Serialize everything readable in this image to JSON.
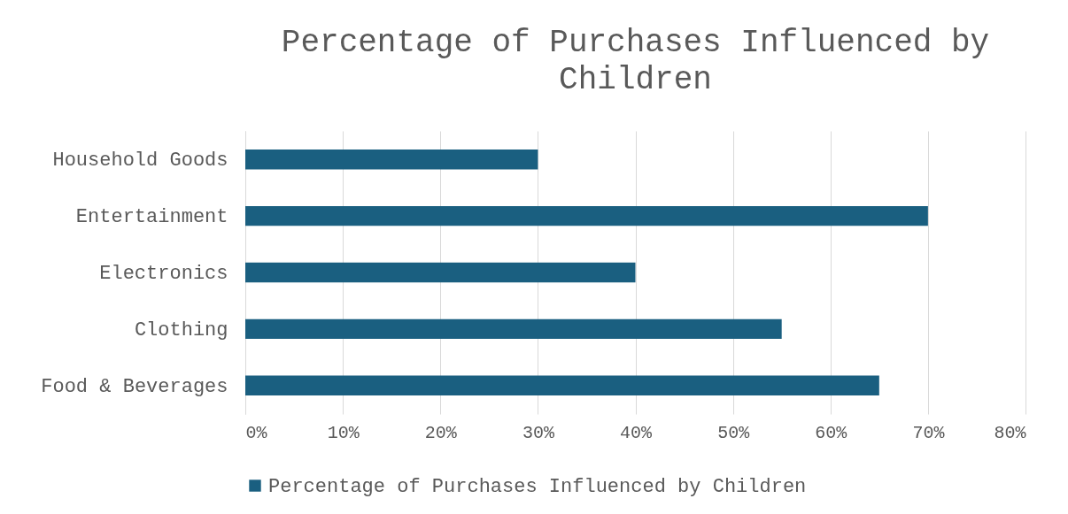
{
  "chart_data": {
    "type": "bar",
    "orientation": "horizontal",
    "title": "Percentage of Purchases Influenced by Children",
    "categories": [
      "Household Goods",
      "Entertainment",
      "Electronics",
      "Clothing",
      "Food & Beverages"
    ],
    "series": [
      {
        "name": "Percentage of Purchases Influenced by Children",
        "color": "#1a5f80",
        "values": [
          30,
          70,
          40,
          55,
          65
        ]
      }
    ],
    "xlim": [
      0,
      80
    ],
    "xticks": [
      {
        "value": 0,
        "label": "0%"
      },
      {
        "value": 10,
        "label": "10%"
      },
      {
        "value": 20,
        "label": "20%"
      },
      {
        "value": 30,
        "label": "30%"
      },
      {
        "value": 40,
        "label": "40%"
      },
      {
        "value": 50,
        "label": "50%"
      },
      {
        "value": 60,
        "label": "60%"
      },
      {
        "value": 70,
        "label": "70%"
      },
      {
        "value": 80,
        "label": "80%"
      }
    ],
    "grid": "x",
    "legend": "bottom"
  }
}
